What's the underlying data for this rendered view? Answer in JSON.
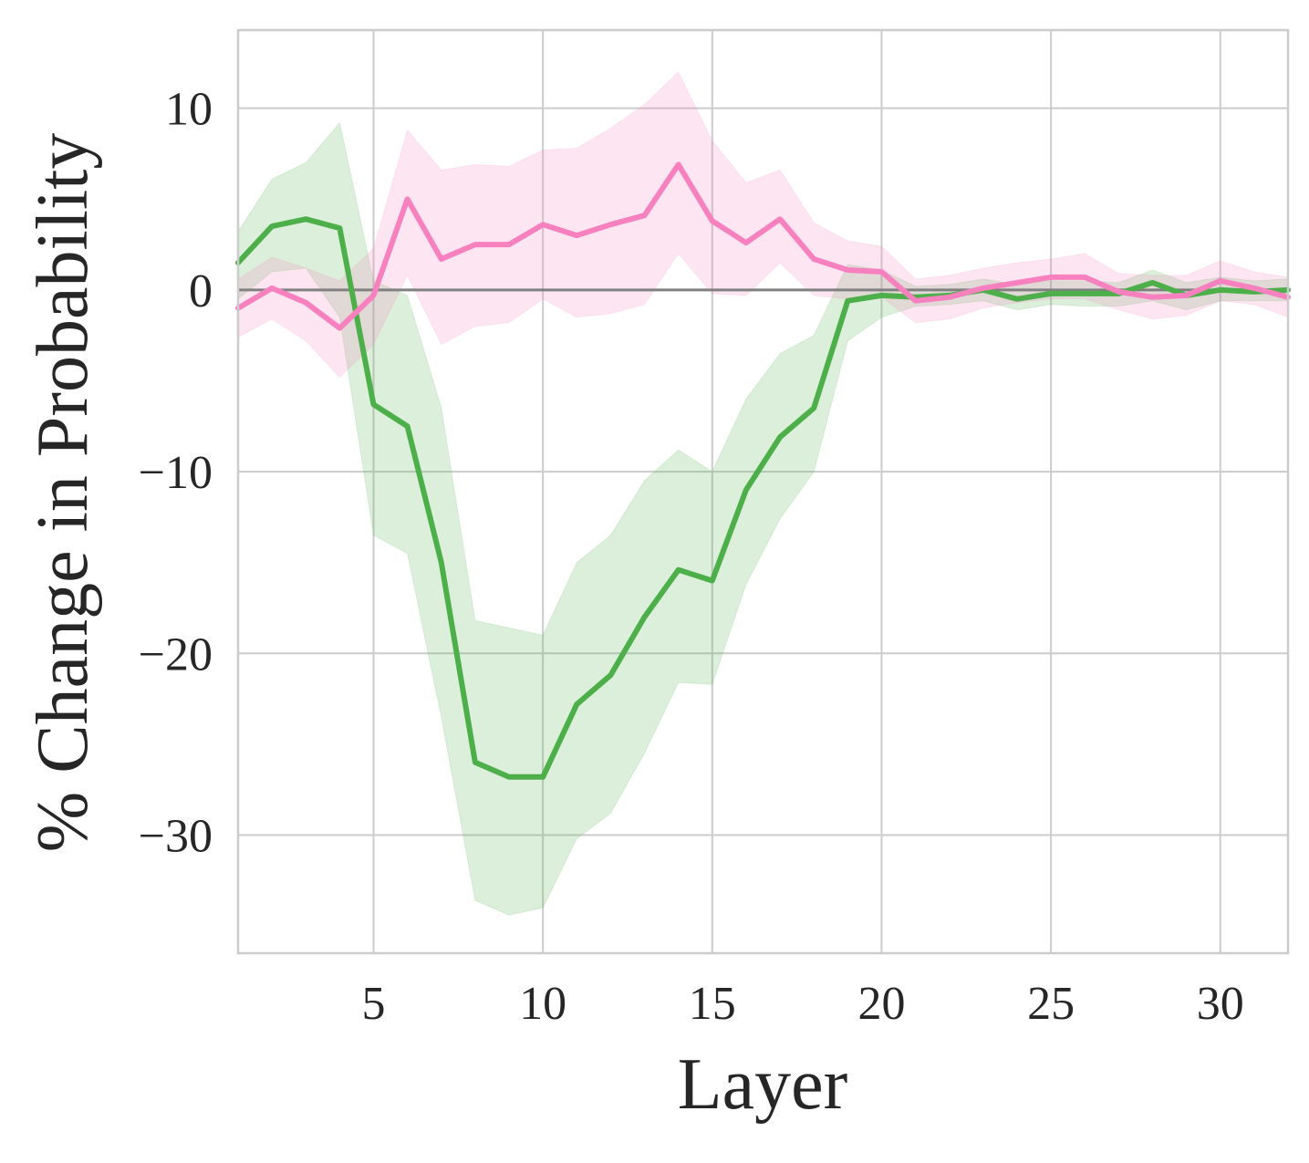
{
  "chart_data": {
    "type": "line",
    "xlabel": "Layer",
    "ylabel": "% Change in Probability",
    "xlim": [
      1,
      32
    ],
    "ylim": [
      -36.5,
      14.3
    ],
    "xticks": [
      5,
      10,
      15,
      20,
      25,
      30
    ],
    "yticks": [
      10,
      0,
      -10,
      -20,
      -30
    ],
    "ytick_labels": [
      "10",
      "0",
      "−10",
      "−20",
      "−30"
    ],
    "grid": true,
    "legend": "none",
    "reference_line": {
      "y": 0,
      "color": "#808080"
    },
    "series": [
      {
        "color": "#4daf4a",
        "x": [
          1,
          2,
          3,
          4,
          5,
          6,
          7,
          8,
          9,
          10,
          11,
          12,
          13,
          14,
          15,
          16,
          17,
          18,
          19,
          20,
          21,
          22,
          23,
          24,
          25,
          26,
          27,
          28,
          29,
          30,
          31,
          32
        ],
        "y": [
          1.5,
          3.5,
          3.9,
          3.4,
          -6.3,
          -7.5,
          -15.0,
          -26.0,
          -26.8,
          -26.8,
          -22.8,
          -21.2,
          -18.0,
          -15.4,
          -16.0,
          -11.0,
          -8.1,
          -6.5,
          -0.6,
          -0.3,
          -0.4,
          -0.3,
          0.0,
          -0.5,
          -0.2,
          -0.2,
          -0.2,
          0.4,
          -0.3,
          0.0,
          -0.1,
          0.0
        ],
        "lower": [
          -0.5,
          1.0,
          1.2,
          -1.5,
          -13.5,
          -14.5,
          -23.5,
          -33.6,
          -34.4,
          -34.0,
          -30.2,
          -28.8,
          -25.5,
          -21.6,
          -21.7,
          -16.2,
          -12.6,
          -10.0,
          -2.8,
          -1.5,
          -0.9,
          -0.8,
          -0.6,
          -1.1,
          -0.8,
          -0.9,
          -0.9,
          -0.6,
          -1.1,
          -0.6,
          -0.6,
          -0.6
        ],
        "upper": [
          3.2,
          6.1,
          7.0,
          9.2,
          0.5,
          -0.3,
          -6.5,
          -18.2,
          -18.6,
          -19.0,
          -15.0,
          -13.5,
          -10.5,
          -8.8,
          -10.0,
          -6.0,
          -3.5,
          -2.5,
          1.4,
          1.1,
          0.2,
          0.3,
          0.6,
          0.3,
          0.5,
          0.5,
          0.4,
          1.1,
          0.4,
          0.7,
          0.5,
          0.6
        ]
      },
      {
        "color": "#f781bf",
        "x": [
          1,
          2,
          3,
          4,
          5,
          6,
          7,
          8,
          9,
          10,
          11,
          12,
          13,
          14,
          15,
          16,
          17,
          18,
          19,
          20,
          21,
          22,
          23,
          24,
          25,
          26,
          27,
          28,
          29,
          30,
          31,
          32
        ],
        "y": [
          -1.0,
          0.1,
          -0.7,
          -2.1,
          -0.3,
          5.0,
          1.7,
          2.5,
          2.5,
          3.6,
          3.0,
          3.6,
          4.1,
          6.9,
          3.8,
          2.6,
          3.9,
          1.7,
          1.1,
          1.0,
          -0.6,
          -0.4,
          0.1,
          0.4,
          0.7,
          0.7,
          -0.1,
          -0.4,
          -0.3,
          0.5,
          0.1,
          -0.4
        ],
        "lower": [
          -2.6,
          -1.6,
          -2.8,
          -4.8,
          -3.0,
          0.8,
          -3.0,
          -2.0,
          -1.8,
          -0.5,
          -1.5,
          -1.3,
          -0.8,
          2.0,
          -0.2,
          -0.3,
          1.5,
          -0.3,
          -0.5,
          -0.4,
          -1.8,
          -1.6,
          -1.0,
          -0.7,
          -0.5,
          -0.5,
          -1.1,
          -1.6,
          -1.4,
          -0.6,
          -0.8,
          -1.5
        ],
        "upper": [
          0.6,
          1.8,
          1.2,
          0.5,
          2.3,
          8.8,
          6.6,
          6.9,
          6.8,
          7.7,
          7.8,
          8.9,
          10.2,
          12.0,
          8.2,
          5.9,
          6.6,
          3.7,
          2.7,
          2.4,
          0.6,
          0.8,
          1.2,
          1.5,
          1.7,
          2.0,
          0.9,
          0.8,
          0.8,
          1.6,
          1.0,
          0.7
        ]
      }
    ]
  }
}
